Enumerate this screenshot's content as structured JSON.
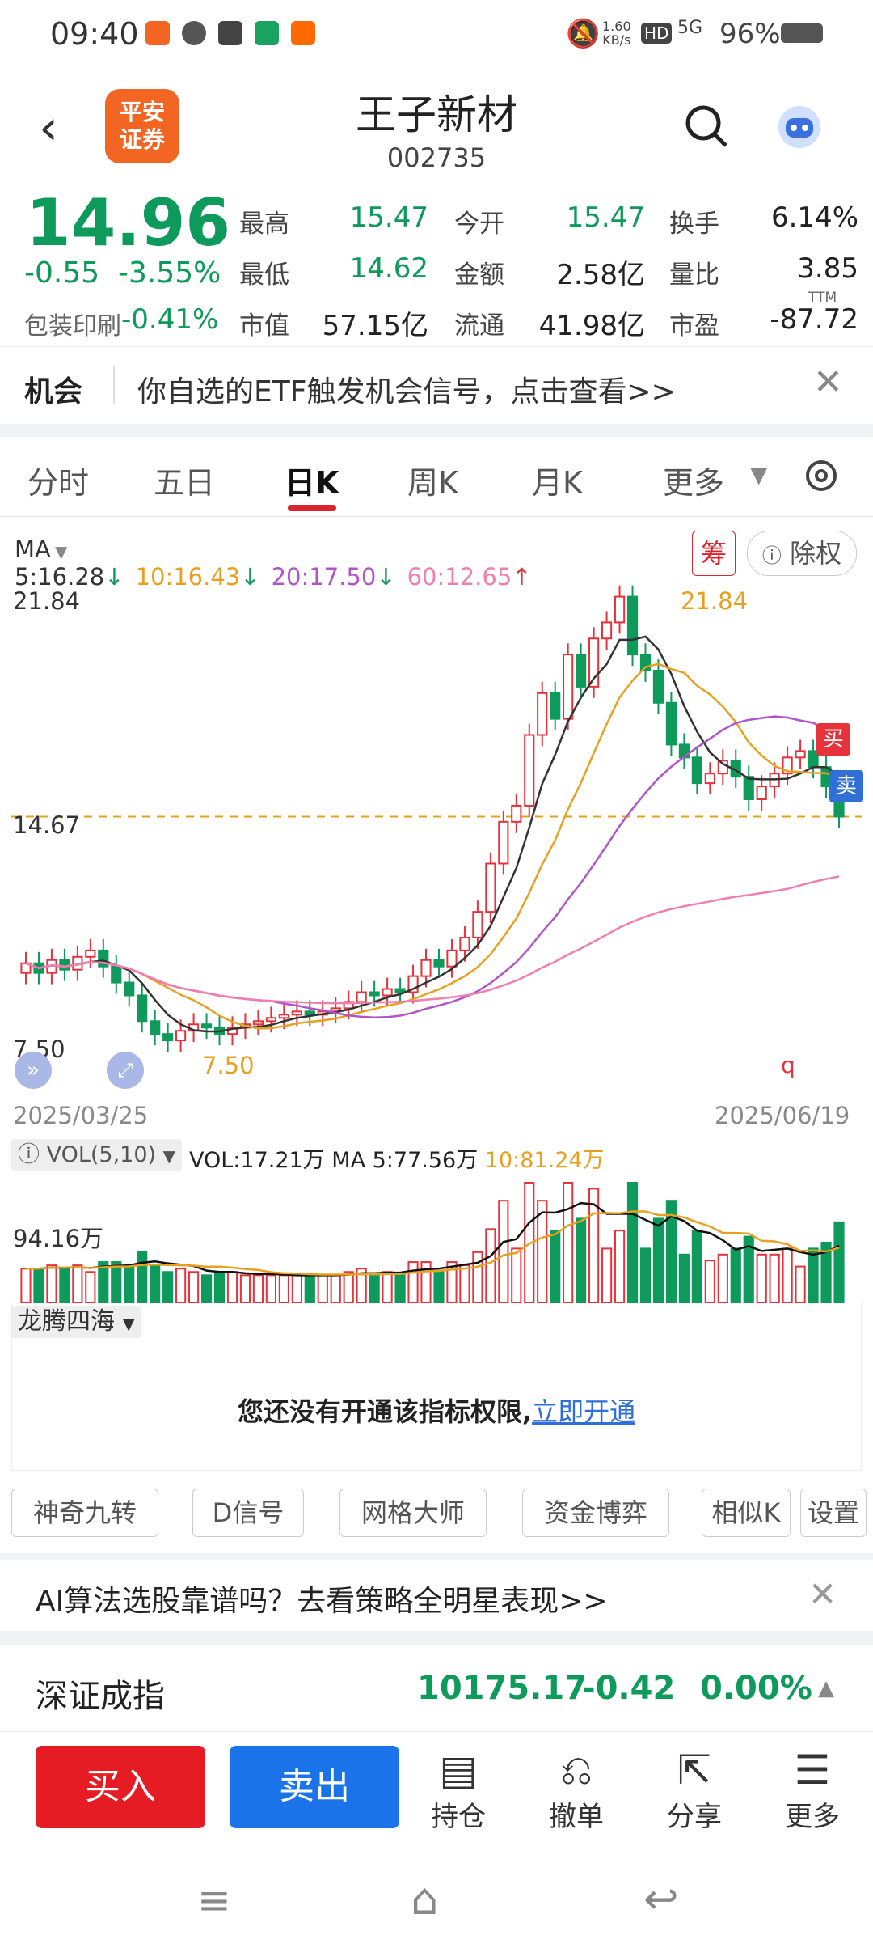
{
  "status_bar": {
    "time": "09:40",
    "net_speed": "1.60\nKB/s",
    "battery": "96%",
    "net_badge": "HD",
    "signal": "5G"
  },
  "header": {
    "title": "王子新材",
    "code": "002735",
    "logo_text": "平安\n证券"
  },
  "quote": {
    "price": "14.96",
    "change": "-0.55",
    "change_pct": "-3.55%",
    "sector_name": "包装印刷",
    "sector_pct": "-0.41%",
    "stats": [
      {
        "label": "最高",
        "value": "15.47",
        "color": "#0e9a5b"
      },
      {
        "label": "今开",
        "value": "15.47",
        "color": "#0e9a5b"
      },
      {
        "label": "换手",
        "value": "6.14%",
        "color": "#222"
      },
      {
        "label": "最低",
        "value": "14.62",
        "color": "#0e9a5b"
      },
      {
        "label": "金额",
        "value": "2.58亿",
        "color": "#222"
      },
      {
        "label": "量比",
        "value": "3.85",
        "color": "#222"
      },
      {
        "label": "市值",
        "value": "57.15亿",
        "color": "#222"
      },
      {
        "label": "流通",
        "value": "41.98亿",
        "color": "#222"
      },
      {
        "label": "市盈",
        "value": "-87.72",
        "color": "#222"
      }
    ],
    "ttm": "TTM"
  },
  "opportunity": {
    "tag": "机会",
    "text": "你自选的ETF触发机会信号，点击查看>>"
  },
  "tabs": [
    "分时",
    "五日",
    "日K",
    "周K",
    "月K",
    "更多"
  ],
  "active_tab": "日K",
  "ma_row": {
    "name": "MA",
    "items": [
      {
        "text": "5:16.28",
        "arrow": "↓",
        "color": "#333"
      },
      {
        "text": "10:16.43",
        "arrow": "↓",
        "color": "#e8a020"
      },
      {
        "text": "20:17.50",
        "arrow": "↓",
        "color": "#b055c8"
      },
      {
        "text": "60:12.65",
        "arrow": "↑",
        "color": "#f07fb0"
      }
    ],
    "chip_label": "筹",
    "adjust_label": "除权"
  },
  "kchart": {
    "high_label": "21.84",
    "high_annot": "21.84",
    "mid_label": "14.67",
    "low_label": "7.50",
    "low_annot": "7.50",
    "start_date": "2025/03/25",
    "end_date": "2025/06/19",
    "buy_tag": "买",
    "sell_tag": "卖",
    "q_marker": "q"
  },
  "volume": {
    "name": "VOL(5,10)",
    "vol_text": "VOL:17.21万",
    "ma5_text": "MA 5:77.56万",
    "ma10_text": "10:81.24万",
    "max_label": "94.16万"
  },
  "indicator": {
    "name": "龙腾四海",
    "notice": "您还没有开通该指标权限,",
    "link": "立即开通"
  },
  "tools": [
    "神奇九转",
    "D信号",
    "网格大师",
    "资金博弈",
    "相似K",
    "设置"
  ],
  "ai_banner": {
    "text": "AI算法选股靠谱吗？去看策略全明星表现>>"
  },
  "index": {
    "name": "深证成指",
    "value": "10175.17",
    "change": "-0.42",
    "pct": "0.00%"
  },
  "bottom": {
    "buy": "买入",
    "sell": "卖出",
    "nav": [
      "持仓",
      "撤单",
      "分享",
      "更多"
    ]
  },
  "chart_data": {
    "type": "candlestick",
    "x_range": [
      "2025/03/25",
      "2025/06/19"
    ],
    "ylim": [
      7.5,
      21.84
    ],
    "annotations": {
      "max": 21.84,
      "min": 7.5,
      "last": 14.96
    },
    "ma_latest": {
      "MA5": 16.28,
      "MA10": 16.43,
      "MA20": 17.5,
      "MA60": 12.65
    },
    "closes": [
      10.4,
      10.1,
      10.5,
      10.2,
      10.6,
      10.8,
      10.3,
      9.8,
      9.4,
      8.6,
      8.2,
      8.0,
      8.3,
      8.5,
      8.4,
      8.2,
      8.4,
      8.5,
      8.6,
      8.7,
      8.8,
      8.9,
      8.8,
      8.9,
      9.0,
      9.2,
      9.5,
      9.4,
      9.6,
      9.5,
      10.0,
      10.5,
      10.3,
      10.8,
      11.2,
      12.0,
      13.5,
      14.8,
      15.3,
      17.5,
      18.8,
      18.0,
      20.0,
      19.0,
      20.5,
      21.0,
      21.8,
      20.0,
      19.5,
      18.5,
      17.2,
      16.8,
      16.0,
      16.3,
      16.7,
      16.2,
      15.5,
      15.9,
      16.3,
      16.8,
      17.0,
      16.5,
      15.9,
      14.96
    ]
  }
}
